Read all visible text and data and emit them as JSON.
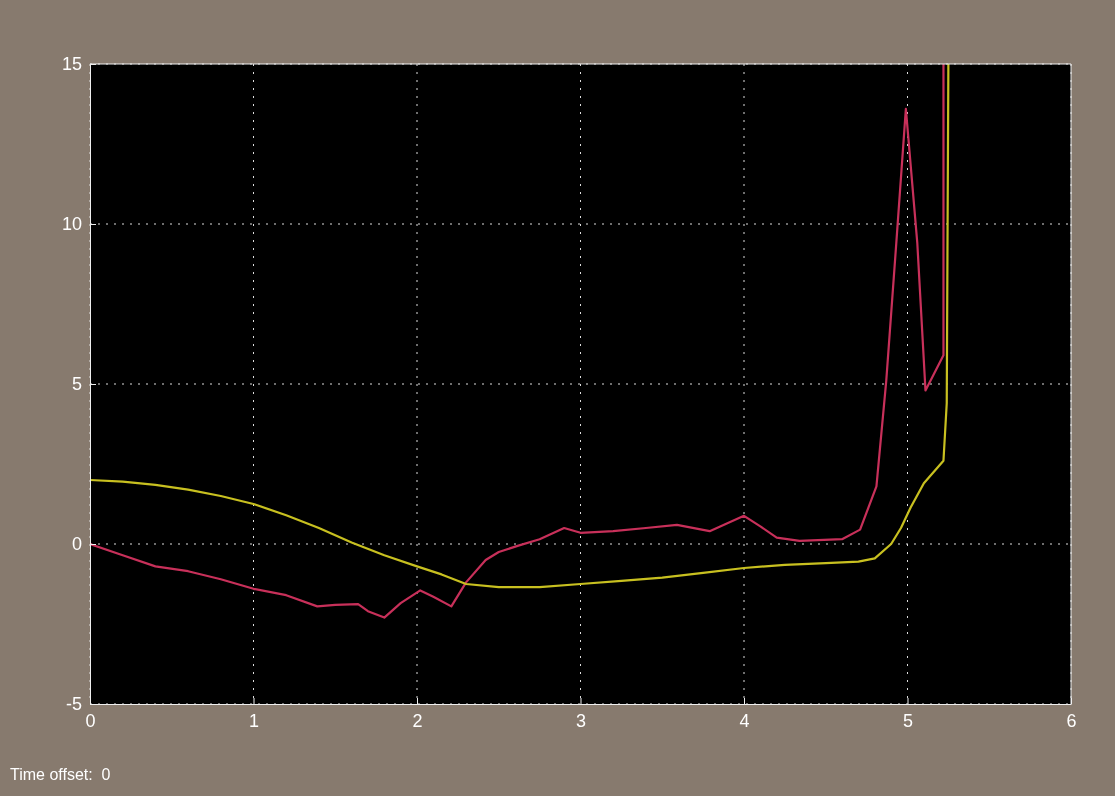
{
  "chart_data": {
    "type": "line",
    "annotations": [
      "Time offset:  0"
    ],
    "xlim": [
      0,
      6
    ],
    "xticks": [
      0,
      1,
      2,
      3,
      4,
      5,
      6
    ],
    "ylim": [
      -5,
      15
    ],
    "yticks": [
      -5,
      0,
      5,
      10,
      15
    ],
    "grid": true,
    "line_style": "solid",
    "marker": "none",
    "series": [
      {
        "color": "#c8305a",
        "x": [
          0,
          0.2,
          0.4,
          0.6,
          0.8,
          1,
          1.2,
          1.39,
          1.5,
          1.64,
          1.7,
          1.8,
          1.9,
          2.02,
          2.1,
          2.21,
          2.3,
          2.42,
          2.5,
          2.62,
          2.75,
          2.9,
          3.0,
          3.2,
          3.4,
          3.59,
          3.79,
          4.0,
          4.1,
          4.2,
          4.34,
          4.6,
          4.71,
          4.81,
          4.87,
          4.93,
          4.99,
          5.06,
          5.11,
          5.22,
          5.22
        ],
        "values": [
          0,
          -0.35,
          -0.7,
          -0.85,
          -1.1,
          -1.4,
          -1.6,
          -1.95,
          -1.9,
          -1.88,
          -2.1,
          -2.3,
          -1.85,
          -1.45,
          -1.65,
          -1.95,
          -1.2,
          -0.5,
          -0.25,
          -0.05,
          0.15,
          0.5,
          0.35,
          0.4,
          0.5,
          0.6,
          0.4,
          0.88,
          0.55,
          0.2,
          0.1,
          0.15,
          0.45,
          1.8,
          5.1,
          9.3,
          13.6,
          9.4,
          4.8,
          5.9,
          15
        ]
      },
      {
        "color": "#c8c020",
        "x": [
          0,
          0.2,
          0.4,
          0.6,
          0.8,
          1,
          1.2,
          1.4,
          1.6,
          1.8,
          2,
          2.15,
          2.3,
          2.5,
          2.75,
          3,
          3.25,
          3.5,
          3.75,
          4,
          4.25,
          4.5,
          4.7,
          4.8,
          4.9,
          4.96,
          5.02,
          5.1,
          5.22,
          5.24,
          5.25
        ],
        "values": [
          2.0,
          1.95,
          1.85,
          1.7,
          1.5,
          1.25,
          0.9,
          0.5,
          0.05,
          -0.35,
          -0.7,
          -0.95,
          -1.25,
          -1.35,
          -1.35,
          -1.25,
          -1.15,
          -1.05,
          -0.9,
          -0.75,
          -0.65,
          -0.6,
          -0.55,
          -0.45,
          0,
          0.5,
          1.15,
          1.9,
          2.6,
          4.4,
          15
        ]
      }
    ]
  }
}
